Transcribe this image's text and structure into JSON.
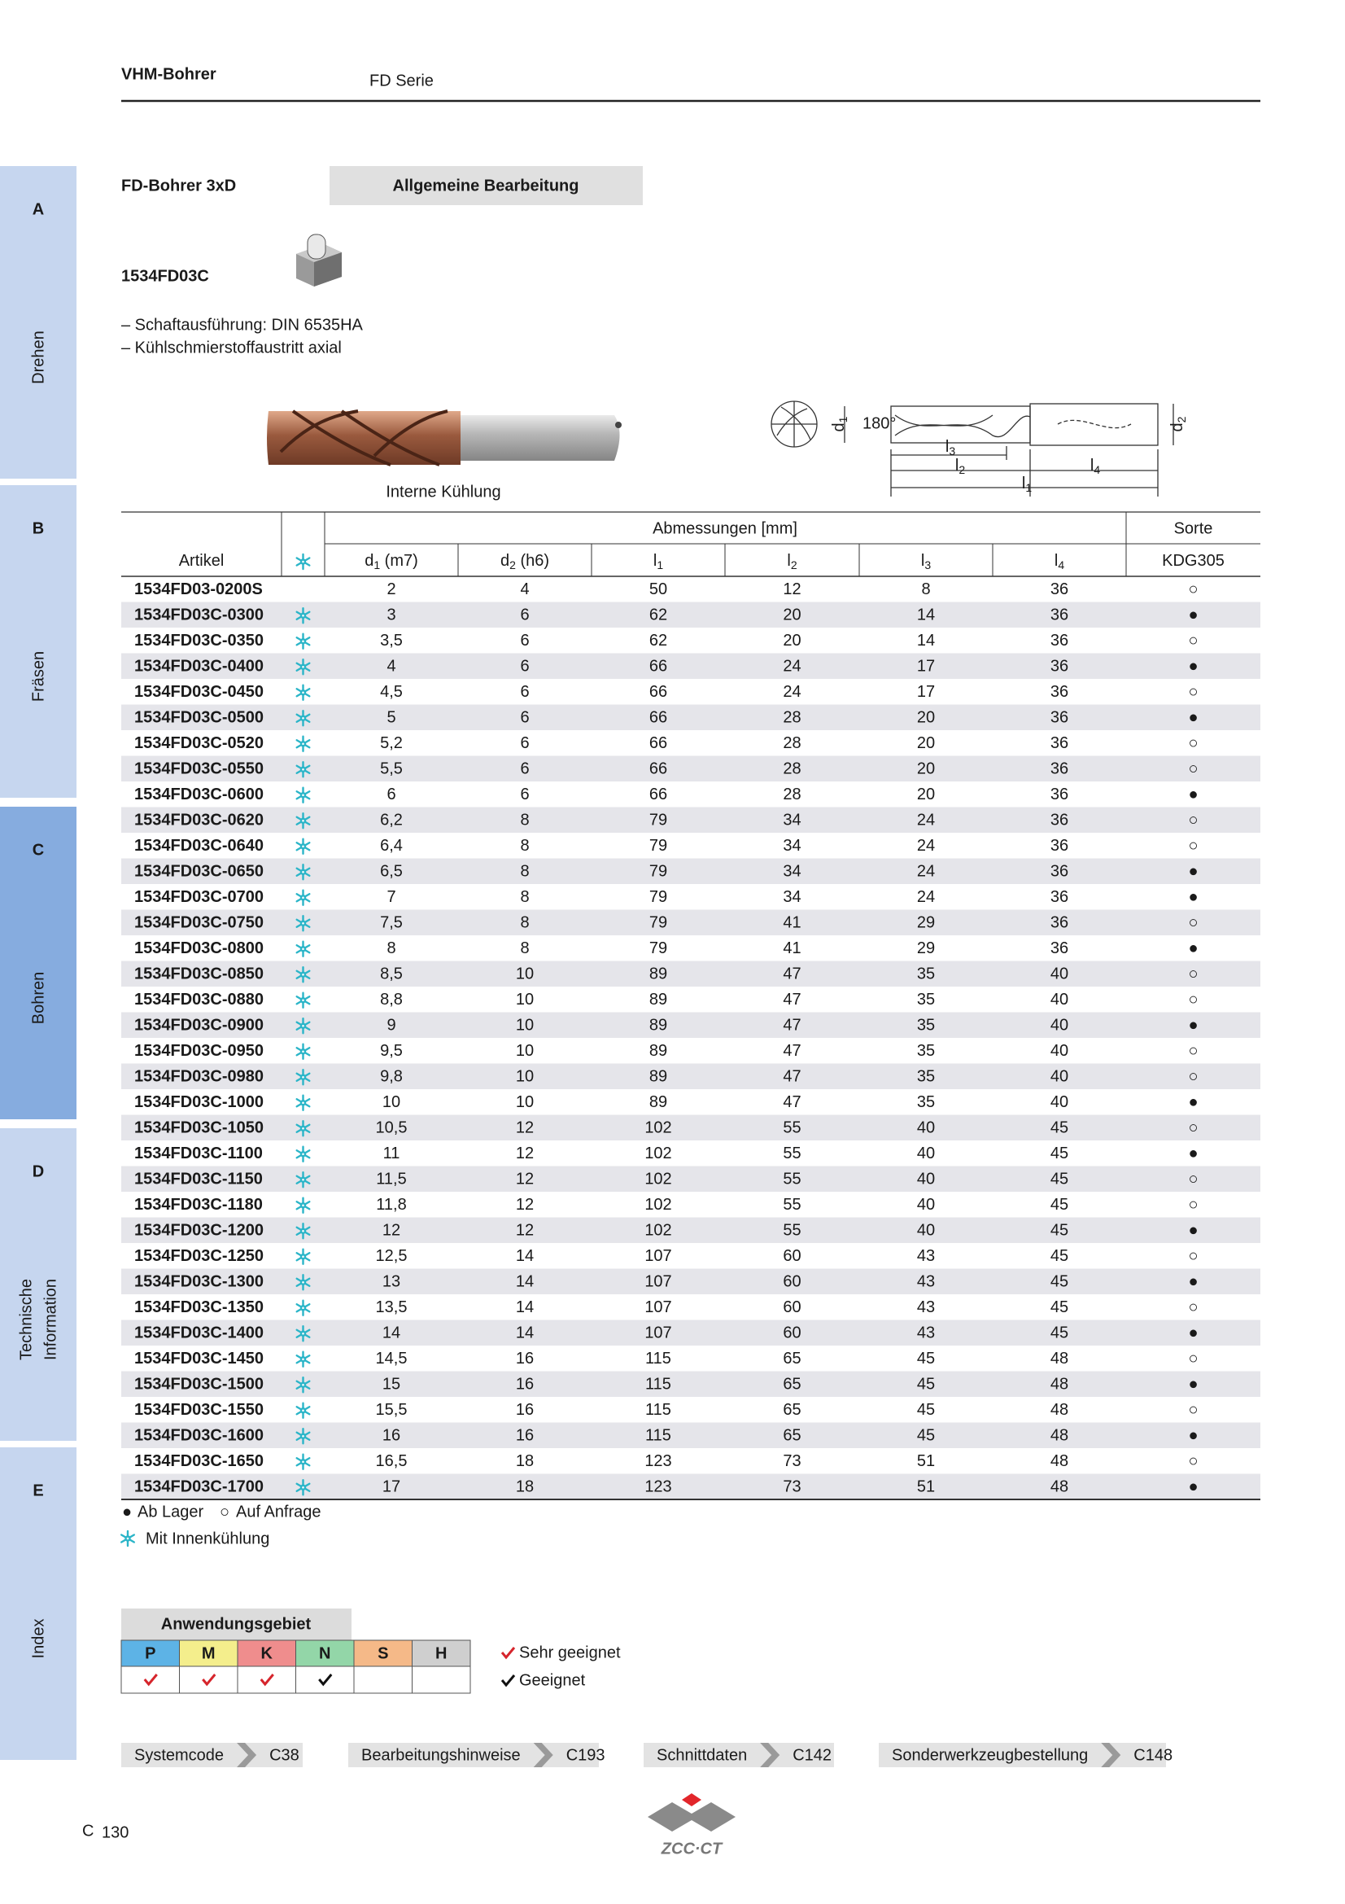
{
  "header": {
    "title": "VHM-Bohrer",
    "series": "FD Serie"
  },
  "tabs": [
    {
      "letter": "A",
      "label": [
        "Drehen"
      ]
    },
    {
      "letter": "B",
      "label": [
        "Fräsen"
      ]
    },
    {
      "letter": "C",
      "label": [
        "Bohren"
      ],
      "active": true
    },
    {
      "letter": "D",
      "label": [
        "Technische",
        "Information"
      ]
    },
    {
      "letter": "E",
      "label": [
        "Index"
      ]
    }
  ],
  "product": {
    "name": "FD-Bohrer 3xD",
    "tag": "Allgemeine Bearbeitung",
    "code": "1534FD03C",
    "features": [
      "– Schaftausführung: DIN 6535HA",
      "– Kühlschmierstoffaustritt axial"
    ],
    "image_caption": "Interne Kühlung"
  },
  "diagram": {
    "angle": "180°",
    "d1": {
      "base": "d",
      "sub": "1"
    },
    "d2": {
      "base": "d",
      "sub": "2"
    },
    "l1": {
      "base": "l",
      "sub": "1"
    },
    "l2": {
      "base": "l",
      "sub": "2"
    },
    "l3": {
      "base": "l",
      "sub": "3"
    },
    "l4": {
      "base": "l",
      "sub": "4"
    }
  },
  "table": {
    "group_header": "Abmessungen [mm]",
    "sorte_header": "Sorte",
    "columns": [
      {
        "base": "Artikel"
      },
      {
        "base": "d",
        "sub": "1",
        "suffix": " (m7)"
      },
      {
        "base": "d",
        "sub": "2",
        "suffix": " (h6)"
      },
      {
        "base": "l",
        "sub": "1"
      },
      {
        "base": "l",
        "sub": "2"
      },
      {
        "base": "l",
        "sub": "3"
      },
      {
        "base": "l",
        "sub": "4"
      },
      {
        "base": "KDG305"
      }
    ],
    "rows": [
      [
        "1534FD03-0200S",
        "2",
        "4",
        "50",
        "12",
        "8",
        "36",
        "○"
      ],
      [
        "1534FD03C-0300",
        "3",
        "6",
        "62",
        "20",
        "14",
        "36",
        "●"
      ],
      [
        "1534FD03C-0350",
        "3,5",
        "6",
        "62",
        "20",
        "14",
        "36",
        "○"
      ],
      [
        "1534FD03C-0400",
        "4",
        "6",
        "66",
        "24",
        "17",
        "36",
        "●"
      ],
      [
        "1534FD03C-0450",
        "4,5",
        "6",
        "66",
        "24",
        "17",
        "36",
        "○"
      ],
      [
        "1534FD03C-0500",
        "5",
        "6",
        "66",
        "28",
        "20",
        "36",
        "●"
      ],
      [
        "1534FD03C-0520",
        "5,2",
        "6",
        "66",
        "28",
        "20",
        "36",
        "○"
      ],
      [
        "1534FD03C-0550",
        "5,5",
        "6",
        "66",
        "28",
        "20",
        "36",
        "○"
      ],
      [
        "1534FD03C-0600",
        "6",
        "6",
        "66",
        "28",
        "20",
        "36",
        "●"
      ],
      [
        "1534FD03C-0620",
        "6,2",
        "8",
        "79",
        "34",
        "24",
        "36",
        "○"
      ],
      [
        "1534FD03C-0640",
        "6,4",
        "8",
        "79",
        "34",
        "24",
        "36",
        "○"
      ],
      [
        "1534FD03C-0650",
        "6,5",
        "8",
        "79",
        "34",
        "24",
        "36",
        "●"
      ],
      [
        "1534FD03C-0700",
        "7",
        "8",
        "79",
        "34",
        "24",
        "36",
        "●"
      ],
      [
        "1534FD03C-0750",
        "7,5",
        "8",
        "79",
        "41",
        "29",
        "36",
        "○"
      ],
      [
        "1534FD03C-0800",
        "8",
        "8",
        "79",
        "41",
        "29",
        "36",
        "●"
      ],
      [
        "1534FD03C-0850",
        "8,5",
        "10",
        "89",
        "47",
        "35",
        "40",
        "○"
      ],
      [
        "1534FD03C-0880",
        "8,8",
        "10",
        "89",
        "47",
        "35",
        "40",
        "○"
      ],
      [
        "1534FD03C-0900",
        "9",
        "10",
        "89",
        "47",
        "35",
        "40",
        "●"
      ],
      [
        "1534FD03C-0950",
        "9,5",
        "10",
        "89",
        "47",
        "35",
        "40",
        "○"
      ],
      [
        "1534FD03C-0980",
        "9,8",
        "10",
        "89",
        "47",
        "35",
        "40",
        "○"
      ],
      [
        "1534FD03C-1000",
        "10",
        "10",
        "89",
        "47",
        "35",
        "40",
        "●"
      ],
      [
        "1534FD03C-1050",
        "10,5",
        "12",
        "102",
        "55",
        "40",
        "45",
        "○"
      ],
      [
        "1534FD03C-1100",
        "11",
        "12",
        "102",
        "55",
        "40",
        "45",
        "●"
      ],
      [
        "1534FD03C-1150",
        "11,5",
        "12",
        "102",
        "55",
        "40",
        "45",
        "○"
      ],
      [
        "1534FD03C-1180",
        "11,8",
        "12",
        "102",
        "55",
        "40",
        "45",
        "○"
      ],
      [
        "1534FD03C-1200",
        "12",
        "12",
        "102",
        "55",
        "40",
        "45",
        "●"
      ],
      [
        "1534FD03C-1250",
        "12,5",
        "14",
        "107",
        "60",
        "43",
        "45",
        "○"
      ],
      [
        "1534FD03C-1300",
        "13",
        "14",
        "107",
        "60",
        "43",
        "45",
        "●"
      ],
      [
        "1534FD03C-1350",
        "13,5",
        "14",
        "107",
        "60",
        "43",
        "45",
        "○"
      ],
      [
        "1534FD03C-1400",
        "14",
        "14",
        "107",
        "60",
        "43",
        "45",
        "●"
      ],
      [
        "1534FD03C-1450",
        "14,5",
        "16",
        "115",
        "65",
        "45",
        "48",
        "○"
      ],
      [
        "1534FD03C-1500",
        "15",
        "16",
        "115",
        "65",
        "45",
        "48",
        "●"
      ],
      [
        "1534FD03C-1550",
        "15,5",
        "16",
        "115",
        "65",
        "45",
        "48",
        "○"
      ],
      [
        "1534FD03C-1600",
        "16",
        "16",
        "115",
        "65",
        "45",
        "48",
        "●"
      ],
      [
        "1534FD03C-1650",
        "16,5",
        "18",
        "123",
        "73",
        "51",
        "48",
        "○"
      ],
      [
        "1534FD03C-1700",
        "17",
        "18",
        "123",
        "73",
        "51",
        "48",
        "●"
      ]
    ],
    "coolant": [
      false,
      true,
      true,
      true,
      true,
      true,
      true,
      true,
      true,
      true,
      true,
      true,
      true,
      true,
      true,
      true,
      true,
      true,
      true,
      true,
      true,
      true,
      true,
      true,
      true,
      true,
      true,
      true,
      true,
      true,
      true,
      true,
      true,
      true,
      true,
      true
    ]
  },
  "legend": {
    "stock": [
      {
        "symbol": "●",
        "label": "Ab Lager"
      },
      {
        "symbol": "○",
        "label": "Auf Anfrage"
      }
    ],
    "coolant": "Mit Innenkühlung"
  },
  "application": {
    "title": "Anwendungsgebiet",
    "materials": [
      {
        "code": "P",
        "color": "#5db3e6",
        "rating": "very"
      },
      {
        "code": "M",
        "color": "#f4ee8c",
        "rating": "very"
      },
      {
        "code": "K",
        "color": "#ef8d8d",
        "rating": "very"
      },
      {
        "code": "N",
        "color": "#93d6a8",
        "rating": "good"
      },
      {
        "code": "S",
        "color": "#f5b988",
        "rating": "none"
      },
      {
        "code": "H",
        "color": "#cfcfcf",
        "rating": "none"
      }
    ],
    "legend": {
      "very": "Sehr geeignet",
      "good": "Geeignet"
    }
  },
  "links": [
    {
      "label": "Systemcode",
      "page": "C38"
    },
    {
      "label": "Bearbeitungshinweise",
      "page": "C193"
    },
    {
      "label": "Schnittdaten",
      "page": "C142"
    },
    {
      "label": "Sonderwerkzeugbestellung",
      "page": "C148"
    }
  ],
  "footer": {
    "section": "C",
    "page": "130",
    "logo": "ZCC·CT"
  }
}
